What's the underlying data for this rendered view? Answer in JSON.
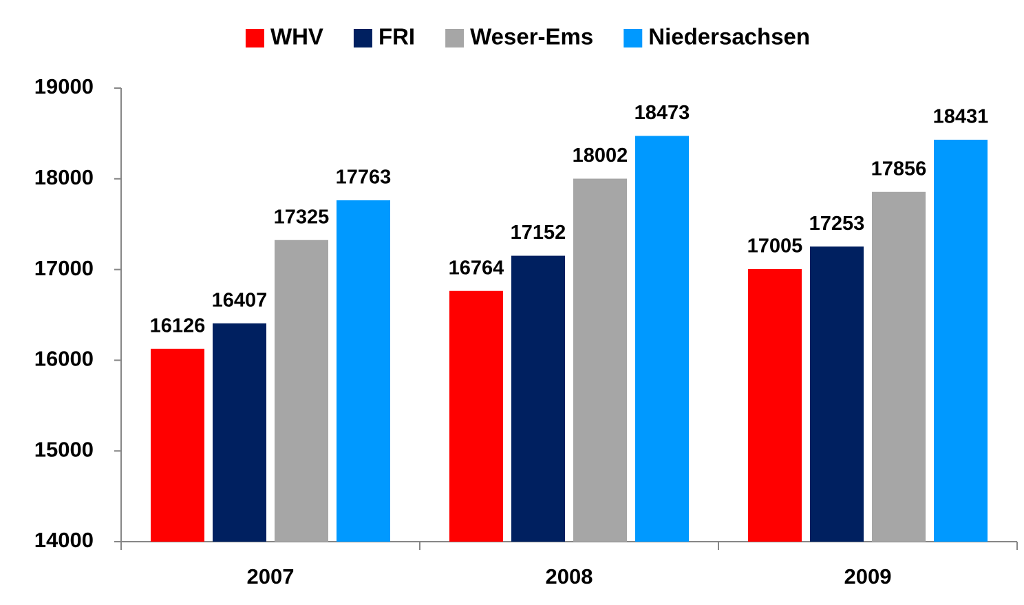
{
  "chart_data": {
    "type": "bar",
    "categories": [
      "2007",
      "2008",
      "2009"
    ],
    "series": [
      {
        "name": "WHV",
        "color": "#ff0000",
        "values": [
          16126,
          16764,
          17005
        ]
      },
      {
        "name": "FRI",
        "color": "#002060",
        "values": [
          16407,
          17152,
          17253
        ]
      },
      {
        "name": "Weser-Ems",
        "color": "#a6a6a6",
        "values": [
          17325,
          18002,
          17856
        ]
      },
      {
        "name": "Niedersachsen",
        "color": "#0099ff",
        "values": [
          17763,
          18473,
          18431
        ]
      }
    ],
    "ylim": [
      14000,
      19000
    ],
    "yticks": [
      14000,
      15000,
      16000,
      17000,
      18000,
      19000
    ],
    "grid": false,
    "legend": "top"
  }
}
